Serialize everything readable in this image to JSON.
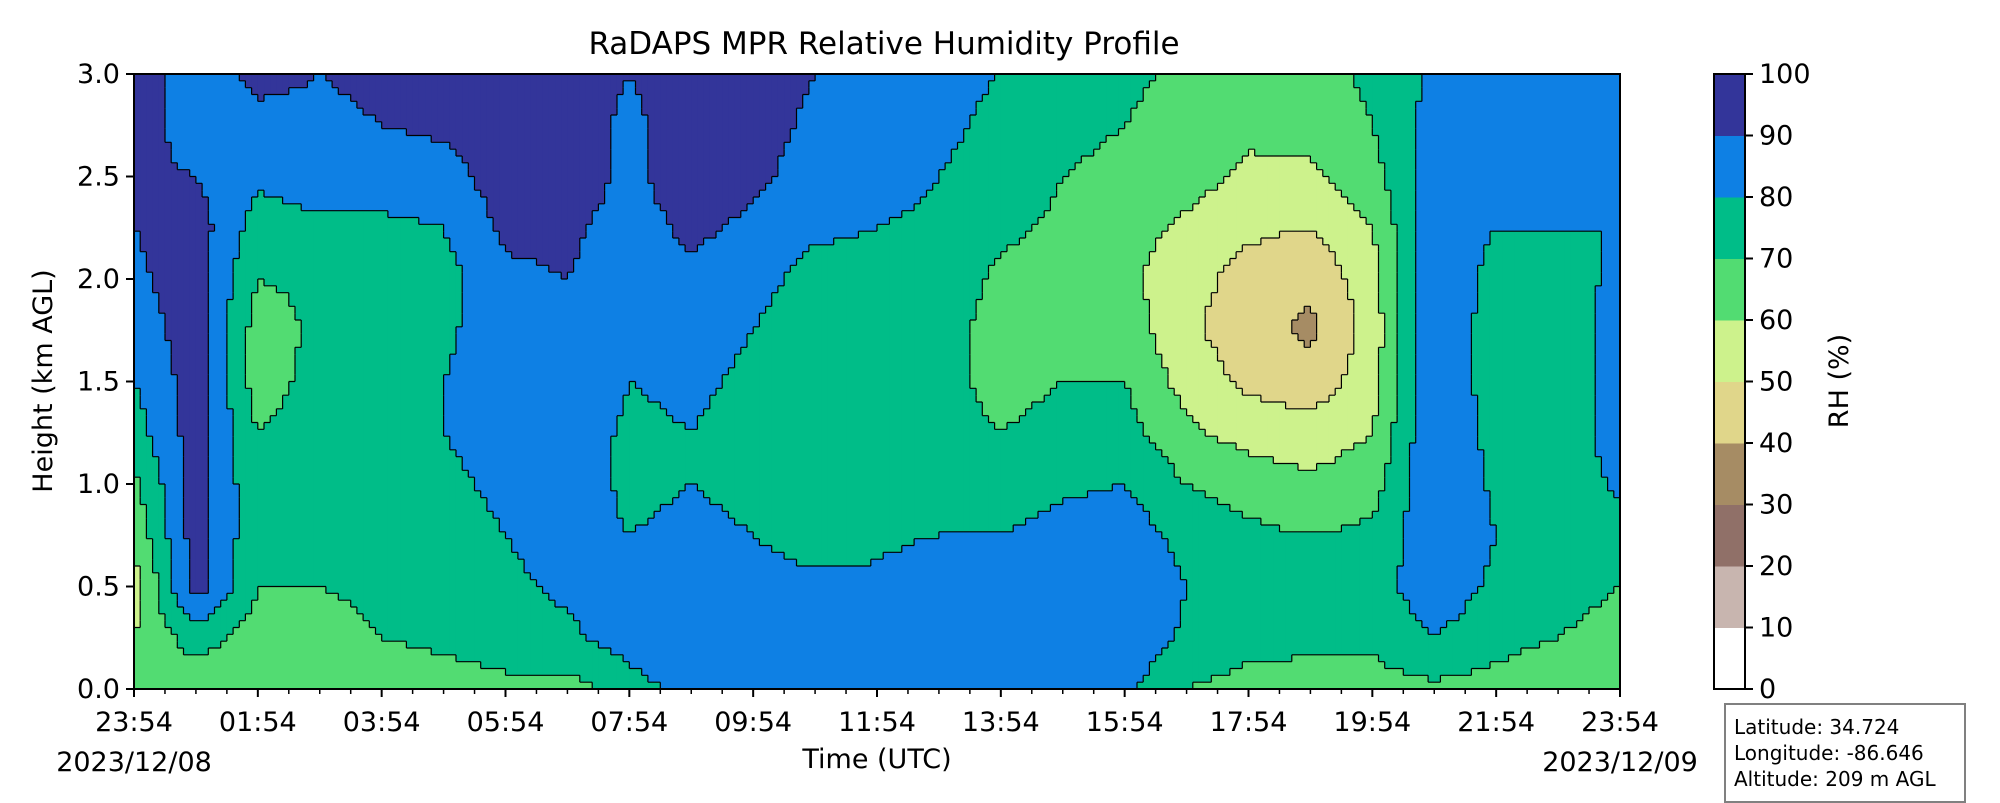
{
  "chart_data": {
    "type": "heatmap",
    "subtype": "filled-contour",
    "title": "RaDAPS MPR Relative Humidity Profile",
    "xlabel": "Time (UTC)",
    "ylabel": "Height (km AGL)",
    "ylim": [
      0.0,
      3.0
    ],
    "yticks": [
      "0.0",
      "0.5",
      "1.0",
      "1.5",
      "2.0",
      "2.5",
      "3.0"
    ],
    "xticks": [
      "23:54",
      "01:54",
      "03:54",
      "05:54",
      "07:54",
      "09:54",
      "11:54",
      "13:54",
      "15:54",
      "17:54",
      "19:54",
      "21:54",
      "23:54"
    ],
    "date_start": "2023/12/08",
    "date_end": "2023/12/09",
    "colorbar": {
      "label": "RH (%)",
      "levels": [
        0,
        10,
        20,
        30,
        40,
        50,
        60,
        70,
        80,
        90,
        100
      ],
      "colors": [
        "#ffffff",
        "#c8b5af",
        "#907068",
        "#a68c64",
        "#e0d68a",
        "#cdf28c",
        "#52dc72",
        "#00bd88",
        "#0e80e4",
        "#33359a"
      ]
    },
    "rh_grid": {
      "x_hours": [
        0,
        1,
        2,
        3,
        4,
        5,
        6,
        7,
        8,
        9,
        10,
        11,
        12,
        13,
        14,
        15,
        16,
        17,
        18,
        19,
        20,
        21,
        22,
        23,
        24
      ],
      "heights_km": [
        0.0,
        0.25,
        0.5,
        0.75,
        1.0,
        1.25,
        1.5,
        1.75,
        2.0,
        2.25,
        2.5,
        2.75,
        3.0
      ],
      "values": [
        [
          65,
          60,
          55,
          62,
          68,
          75,
          80,
          85,
          88,
          90,
          92,
          95,
          95
        ],
        [
          62,
          75,
          95,
          95,
          95,
          95,
          95,
          95,
          95,
          95,
          90,
          85,
          85
        ],
        [
          60,
          65,
          70,
          72,
          72,
          70,
          65,
          65,
          70,
          75,
          82,
          88,
          92
        ],
        [
          62,
          66,
          70,
          72,
          74,
          75,
          74,
          72,
          72,
          78,
          85,
          88,
          90
        ],
        [
          65,
          70,
          72,
          74,
          75,
          76,
          76,
          75,
          74,
          78,
          85,
          90,
          92
        ],
        [
          66,
          72,
          75,
          76,
          78,
          80,
          80,
          78,
          76,
          80,
          86,
          92,
          95
        ],
        [
          68,
          74,
          78,
          80,
          82,
          84,
          85,
          86,
          88,
          92,
          95,
          95,
          95
        ],
        [
          66,
          78,
          82,
          84,
          85,
          86,
          88,
          88,
          90,
          92,
          95,
          95,
          95
        ],
        [
          75,
          85,
          84,
          80,
          78,
          78,
          80,
          82,
          84,
          86,
          88,
          88,
          90
        ],
        [
          85,
          88,
          86,
          82,
          80,
          80,
          82,
          84,
          88,
          92,
          95,
          95,
          95
        ],
        [
          86,
          88,
          84,
          80,
          78,
          76,
          78,
          80,
          84,
          88,
          92,
          94,
          95
        ],
        [
          84,
          86,
          82,
          76,
          72,
          70,
          70,
          72,
          76,
          82,
          86,
          88,
          90
        ],
        [
          85,
          86,
          82,
          78,
          74,
          72,
          72,
          74,
          76,
          80,
          84,
          86,
          86
        ],
        [
          85,
          90,
          86,
          80,
          75,
          72,
          72,
          74,
          76,
          78,
          80,
          82,
          82
        ],
        [
          85,
          86,
          84,
          80,
          74,
          70,
          68,
          66,
          68,
          72,
          76,
          78,
          80
        ],
        [
          86,
          90,
          88,
          84,
          78,
          72,
          70,
          68,
          66,
          68,
          70,
          72,
          74
        ],
        [
          82,
          88,
          90,
          86,
          80,
          74,
          70,
          66,
          62,
          64,
          68,
          70,
          72
        ],
        [
          70,
          78,
          80,
          76,
          70,
          62,
          56,
          52,
          54,
          58,
          64,
          66,
          68
        ],
        [
          66,
          74,
          76,
          72,
          66,
          56,
          48,
          44,
          46,
          52,
          58,
          62,
          64
        ],
        [
          66,
          72,
          74,
          70,
          62,
          54,
          44,
          38,
          42,
          50,
          58,
          64,
          66
        ],
        [
          66,
          72,
          76,
          72,
          66,
          60,
          56,
          54,
          56,
          60,
          66,
          70,
          72
        ],
        [
          68,
          80,
          86,
          88,
          90,
          90,
          90,
          90,
          90,
          88,
          86,
          84,
          82
        ],
        [
          66,
          74,
          78,
          80,
          78,
          76,
          74,
          74,
          76,
          80,
          84,
          86,
          88
        ],
        [
          60,
          70,
          74,
          74,
          72,
          72,
          72,
          74,
          76,
          80,
          84,
          86,
          88
        ],
        [
          62,
          66,
          70,
          76,
          82,
          86,
          86,
          84,
          82,
          80,
          82,
          84,
          86
        ]
      ]
    }
  },
  "info": {
    "latitude": "Latitude: 34.724",
    "longitude": "Longitude: -86.646",
    "altitude": "Altitude: 209 m AGL"
  }
}
